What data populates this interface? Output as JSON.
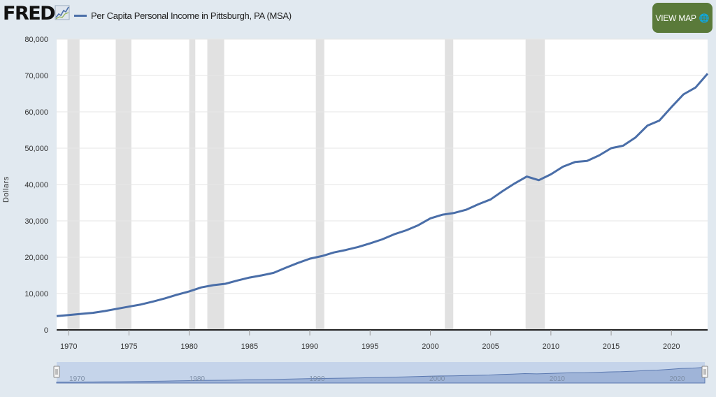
{
  "header": {
    "logo_text": "FRED",
    "legend_label": "Per Capita Personal Income in Pittsburgh, PA (MSA)",
    "view_map_label": "VIEW MAP",
    "view_map_icon": "globe-icon",
    "series_color": "#4a6ea8",
    "button_color": "#5a7a3a"
  },
  "navigator": {
    "tick_labels": [
      "1970",
      "1980",
      "1990",
      "2000",
      "2010",
      "2020"
    ]
  },
  "chart_data": {
    "type": "line",
    "ylabel": "Dollars",
    "xlim": [
      1969,
      2023
    ],
    "ylim": [
      0,
      80000
    ],
    "y_ticks": [
      0,
      10000,
      20000,
      30000,
      40000,
      50000,
      60000,
      70000,
      80000
    ],
    "y_tick_labels": [
      "0",
      "10,000",
      "20,000",
      "30,000",
      "40,000",
      "50,000",
      "60,000",
      "70,000",
      "80,000"
    ],
    "x_ticks": [
      1970,
      1975,
      1980,
      1985,
      1990,
      1995,
      2000,
      2005,
      2010,
      2015,
      2020
    ],
    "grid": true,
    "recessions": [
      [
        1969.9,
        1970.9
      ],
      [
        1973.9,
        1975.2
      ],
      [
        1980.0,
        1980.5
      ],
      [
        1981.5,
        1982.9
      ],
      [
        1990.5,
        1991.2
      ],
      [
        2001.2,
        2001.9
      ],
      [
        2007.9,
        2009.5
      ]
    ],
    "series": [
      {
        "name": "Per Capita Personal Income in Pittsburgh, PA (MSA)",
        "x": [
          1969,
          1970,
          1971,
          1972,
          1973,
          1974,
          1975,
          1976,
          1977,
          1978,
          1979,
          1980,
          1981,
          1982,
          1983,
          1984,
          1985,
          1986,
          1987,
          1988,
          1989,
          1990,
          1991,
          1992,
          1993,
          1994,
          1995,
          1996,
          1997,
          1998,
          1999,
          2000,
          2001,
          2002,
          2003,
          2004,
          2005,
          2006,
          2007,
          2008,
          2009,
          2010,
          2011,
          2012,
          2013,
          2014,
          2015,
          2016,
          2017,
          2018,
          2019,
          2020,
          2021,
          2022,
          2023
        ],
        "y": [
          3800,
          4100,
          4400,
          4700,
          5200,
          5800,
          6400,
          7000,
          7800,
          8700,
          9700,
          10600,
          11700,
          12300,
          12700,
          13600,
          14400,
          15000,
          15700,
          17100,
          18400,
          19600,
          20300,
          21300,
          22000,
          22800,
          23800,
          24900,
          26300,
          27400,
          28800,
          30700,
          31700,
          32200,
          33100,
          34600,
          35900,
          38200,
          40300,
          42200,
          41200,
          42800,
          44900,
          46200,
          46500,
          48000,
          50000,
          50700,
          52900,
          56200,
          57600,
          61300,
          64800,
          66700,
          70500
        ]
      }
    ]
  }
}
